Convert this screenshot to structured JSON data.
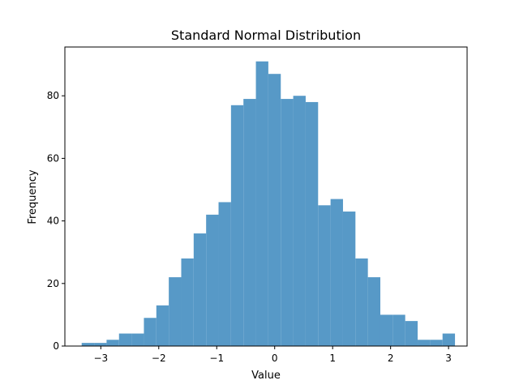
{
  "chart_data": {
    "type": "bar",
    "title": "Standard Normal Distribution",
    "xlabel": "Value",
    "ylabel": "Frequency",
    "xlim": [
      -3.62,
      3.32
    ],
    "ylim": [
      0,
      95.6
    ],
    "xticks": [
      -3,
      -2,
      -1,
      0,
      1,
      2,
      3
    ],
    "yticks": [
      0,
      20,
      40,
      60,
      80
    ],
    "bin_start": -3.33,
    "bin_end": 3.11,
    "bin_width": 0.2147,
    "values": [
      1,
      1,
      2,
      4,
      4,
      9,
      13,
      22,
      28,
      36,
      42,
      46,
      77,
      79,
      91,
      87,
      79,
      80,
      78,
      45,
      47,
      43,
      28,
      22,
      10,
      10,
      8,
      2,
      2,
      4
    ],
    "bar_color": "#5799c7",
    "grid": false,
    "legend": false
  }
}
